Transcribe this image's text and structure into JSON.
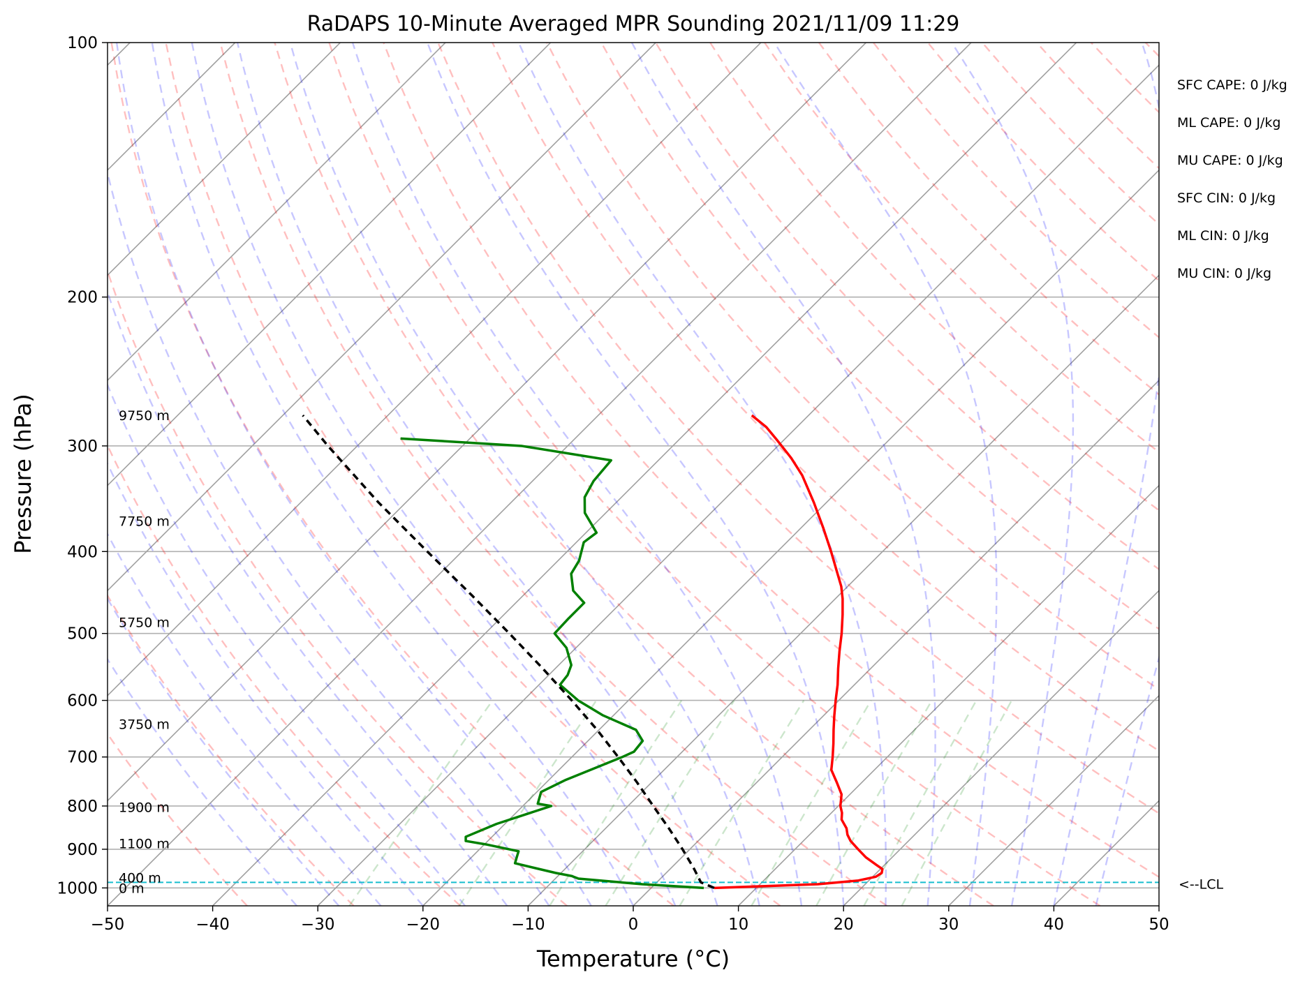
{
  "chart_data": {
    "type": "line",
    "title": "RaDAPS 10-Minute Averaged MPR Sounding 2021/11/09 11:29",
    "xlabel": "Temperature (°C)",
    "ylabel": "Pressure (hPa)",
    "xlim": [
      -50,
      50
    ],
    "ylim": [
      1050,
      100
    ],
    "y_scale": "log",
    "skew": "skew-T",
    "grid": true,
    "x_ticks": [
      -50,
      -40,
      -30,
      -20,
      -10,
      0,
      10,
      20,
      30,
      40,
      50
    ],
    "x_tick_labels": [
      "−50",
      "−40",
      "−30",
      "−20",
      "−10",
      "0",
      "10",
      "20",
      "30",
      "40",
      "50"
    ],
    "y_ticks": [
      100,
      200,
      300,
      400,
      500,
      600,
      700,
      800,
      900,
      1000
    ],
    "y_tick_labels": [
      "100",
      "200",
      "300",
      "400",
      "500",
      "600",
      "700",
      "800",
      "900",
      "1000"
    ],
    "series": [
      {
        "key": "temperature",
        "color": "#ff0000",
        "points": [
          [
            1000,
            6.0
          ],
          [
            990,
            15.5
          ],
          [
            980,
            19.0
          ],
          [
            970,
            20.3
          ],
          [
            960,
            20.5
          ],
          [
            950,
            20.2
          ],
          [
            940,
            19.3
          ],
          [
            920,
            17.5
          ],
          [
            900,
            16.0
          ],
          [
            880,
            14.5
          ],
          [
            865,
            13.6
          ],
          [
            850,
            12.9
          ],
          [
            830,
            11.6
          ],
          [
            815,
            11.0
          ],
          [
            800,
            10.2
          ],
          [
            775,
            9.2
          ],
          [
            750,
            7.6
          ],
          [
            725,
            5.9
          ],
          [
            700,
            4.8
          ],
          [
            675,
            3.6
          ],
          [
            650,
            2.3
          ],
          [
            625,
            1.0
          ],
          [
            600,
            -0.3
          ],
          [
            575,
            -1.6
          ],
          [
            550,
            -3.1
          ],
          [
            525,
            -4.6
          ],
          [
            500,
            -6.1
          ],
          [
            475,
            -7.8
          ],
          [
            455,
            -9.3
          ],
          [
            440,
            -10.6
          ],
          [
            420,
            -12.7
          ],
          [
            400,
            -14.9
          ],
          [
            375,
            -17.9
          ],
          [
            350,
            -21.2
          ],
          [
            325,
            -24.9
          ],
          [
            310,
            -27.6
          ],
          [
            295,
            -30.7
          ],
          [
            285,
            -32.9
          ],
          [
            276,
            -35.4
          ]
        ]
      },
      {
        "key": "dewpoint",
        "color": "#008000",
        "points": [
          [
            1000,
            5.0
          ],
          [
            990,
            -1.2
          ],
          [
            975,
            -7.8
          ],
          [
            968,
            -8.7
          ],
          [
            960,
            -10.5
          ],
          [
            948,
            -12.8
          ],
          [
            935,
            -15.3
          ],
          [
            920,
            -15.7
          ],
          [
            905,
            -16.1
          ],
          [
            888,
            -19.9
          ],
          [
            880,
            -22.1
          ],
          [
            870,
            -22.5
          ],
          [
            840,
            -20.8
          ],
          [
            800,
            -17.3
          ],
          [
            795,
            -18.8
          ],
          [
            770,
            -19.6
          ],
          [
            745,
            -18.4
          ],
          [
            700,
            -15.2
          ],
          [
            690,
            -14.6
          ],
          [
            670,
            -14.8
          ],
          [
            650,
            -16.5
          ],
          [
            625,
            -21.0
          ],
          [
            600,
            -24.8
          ],
          [
            575,
            -28.0
          ],
          [
            560,
            -28.2
          ],
          [
            545,
            -28.8
          ],
          [
            520,
            -30.9
          ],
          [
            500,
            -33.4
          ],
          [
            480,
            -33.5
          ],
          [
            460,
            -33.5
          ],
          [
            445,
            -35.7
          ],
          [
            425,
            -37.5
          ],
          [
            410,
            -38.0
          ],
          [
            390,
            -39.3
          ],
          [
            380,
            -39.0
          ],
          [
            360,
            -42.0
          ],
          [
            345,
            -43.5
          ],
          [
            330,
            -44.2
          ],
          [
            312,
            -44.5
          ],
          [
            300,
            -54.4
          ],
          [
            294,
            -66.6
          ]
        ]
      },
      {
        "key": "parcel",
        "color": "#000000",
        "dashed": true,
        "points": [
          [
            1000,
            6.0
          ],
          [
            985,
            4.2
          ],
          [
            950,
            2.3
          ],
          [
            900,
            -0.7
          ],
          [
            850,
            -4.0
          ],
          [
            800,
            -7.6
          ],
          [
            750,
            -11.4
          ],
          [
            700,
            -15.6
          ],
          [
            650,
            -20.2
          ],
          [
            600,
            -25.4
          ],
          [
            550,
            -31.2
          ],
          [
            500,
            -37.7
          ],
          [
            450,
            -45.0
          ],
          [
            400,
            -53.3
          ],
          [
            350,
            -62.6
          ],
          [
            300,
            -72.8
          ],
          [
            276,
            -78.1
          ]
        ]
      }
    ],
    "height_labels": [
      {
        "text": "0 m",
        "p": 1000
      },
      {
        "text": "400 m",
        "p": 972
      },
      {
        "text": "1100 m",
        "p": 886
      },
      {
        "text": "1900 m",
        "p": 802
      },
      {
        "text": "3750 m",
        "p": 640
      },
      {
        "text": "5750 m",
        "p": 485
      },
      {
        "text": "7750 m",
        "p": 368
      },
      {
        "text": "9750 m",
        "p": 276
      }
    ],
    "lcl": {
      "label": "<--LCL",
      "p": 985
    },
    "annotations": [
      "SFC CAPE: 0 J/kg",
      "ML CAPE: 0 J/kg",
      "MU CAPE: 0 J/kg",
      "SFC CIN: 0 J/kg",
      "ML CIN: 0 J/kg",
      "MU CIN: 0 J/kg"
    ],
    "reference_lines": {
      "dry_adiabat_color": "#ff0000",
      "moist_adiabat_color": "#0000ff",
      "mixing_ratio_color": "#008000",
      "isotherm_color": "#808080",
      "lcl_color": "#17becf"
    }
  }
}
